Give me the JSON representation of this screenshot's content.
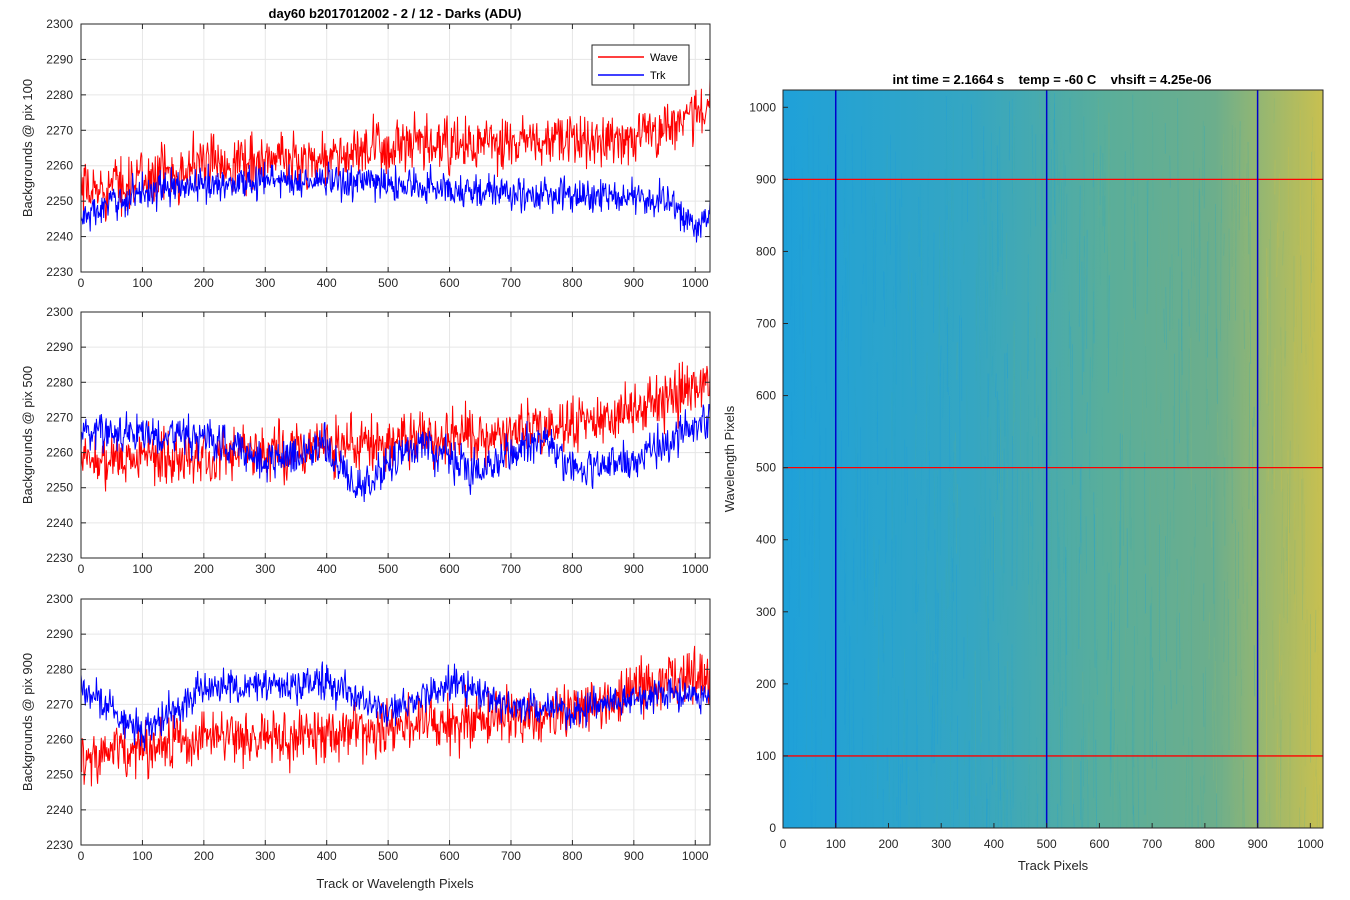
{
  "chart_data": [
    {
      "type": "line",
      "title": "day60 b2017012002 - 2 / 12 - Darks (ADU)",
      "xlabel": "",
      "ylabel": "Backgrounds @ pix 100",
      "xlim": [
        0,
        1024
      ],
      "ylim": [
        2230,
        2300
      ],
      "xticks": [
        0,
        100,
        200,
        300,
        400,
        500,
        600,
        700,
        800,
        900,
        1000
      ],
      "yticks": [
        2230,
        2240,
        2250,
        2260,
        2270,
        2280,
        2290,
        2300
      ],
      "grid": true,
      "legend": "top-right",
      "series": [
        {
          "name": "Wave",
          "color": "#ff0000",
          "trend": [
            [
              0,
              2252
            ],
            [
              200,
              2261
            ],
            [
              400,
              2262
            ],
            [
              500,
              2265
            ],
            [
              700,
              2266
            ],
            [
              900,
              2268
            ],
            [
              1024,
              2276
            ]
          ],
          "noise": 8
        },
        {
          "name": "Trk",
          "color": "#0000ff",
          "trend": [
            [
              0,
              2245
            ],
            [
              100,
              2253
            ],
            [
              300,
              2256
            ],
            [
              500,
              2255
            ],
            [
              700,
              2252
            ],
            [
              900,
              2251
            ],
            [
              960,
              2250
            ],
            [
              1000,
              2242
            ],
            [
              1024,
              2246
            ]
          ],
          "noise": 5
        }
      ]
    },
    {
      "type": "line",
      "title": "",
      "xlabel": "",
      "ylabel": "Backgrounds @ pix 500",
      "xlim": [
        0,
        1024
      ],
      "ylim": [
        2230,
        2300
      ],
      "xticks": [
        0,
        100,
        200,
        300,
        400,
        500,
        600,
        700,
        800,
        900,
        1000
      ],
      "yticks": [
        2230,
        2240,
        2250,
        2260,
        2270,
        2280,
        2290,
        2300
      ],
      "grid": true,
      "series": [
        {
          "name": "Wave",
          "color": "#ff0000",
          "trend": [
            [
              0,
              2258
            ],
            [
              200,
              2259
            ],
            [
              400,
              2262
            ],
            [
              600,
              2265
            ],
            [
              800,
              2268
            ],
            [
              900,
              2272
            ],
            [
              1024,
              2280
            ]
          ],
          "noise": 8
        },
        {
          "name": "Trk",
          "color": "#0000ff",
          "trend": [
            [
              0,
              2266
            ],
            [
              100,
              2266
            ],
            [
              200,
              2264
            ],
            [
              300,
              2258
            ],
            [
              400,
              2262
            ],
            [
              450,
              2250
            ],
            [
              550,
              2262
            ],
            [
              650,
              2255
            ],
            [
              750,
              2265
            ],
            [
              800,
              2255
            ],
            [
              900,
              2258
            ],
            [
              1024,
              2270
            ]
          ],
          "noise": 6
        }
      ]
    },
    {
      "type": "line",
      "title": "",
      "xlabel": "Track or Wavelength Pixels",
      "ylabel": "Backgrounds @ pix 900",
      "xlim": [
        0,
        1024
      ],
      "ylim": [
        2230,
        2300
      ],
      "xticks": [
        0,
        100,
        200,
        300,
        400,
        500,
        600,
        700,
        800,
        900,
        1000
      ],
      "yticks": [
        2230,
        2240,
        2250,
        2260,
        2270,
        2280,
        2290,
        2300
      ],
      "grid": true,
      "series": [
        {
          "name": "Wave",
          "color": "#ff0000",
          "trend": [
            [
              0,
              2255
            ],
            [
              200,
              2260
            ],
            [
              400,
              2262
            ],
            [
              600,
              2265
            ],
            [
              800,
              2268
            ],
            [
              900,
              2273
            ],
            [
              1024,
              2280
            ]
          ],
          "noise": 8
        },
        {
          "name": "Trk",
          "color": "#0000ff",
          "trend": [
            [
              0,
              2275
            ],
            [
              100,
              2262
            ],
            [
              200,
              2275
            ],
            [
              300,
              2275
            ],
            [
              400,
              2276
            ],
            [
              500,
              2268
            ],
            [
              600,
              2276
            ],
            [
              700,
              2270
            ],
            [
              800,
              2268
            ],
            [
              900,
              2273
            ],
            [
              1024,
              2272
            ]
          ],
          "noise": 5
        }
      ]
    },
    {
      "type": "heatmap",
      "title": "int time = 2.1664 s    temp = -60 C    vhsift = 4.25e-06",
      "xlabel": "Track Pixels",
      "ylabel": "Wavelength Pixels",
      "xlim": [
        0,
        1024
      ],
      "ylim": [
        0,
        1024
      ],
      "xticks": [
        0,
        100,
        200,
        300,
        400,
        500,
        600,
        700,
        800,
        900,
        1000
      ],
      "yticks": [
        0,
        100,
        200,
        300,
        400,
        500,
        600,
        700,
        800,
        900,
        1000
      ],
      "grid": false,
      "colormap": "parula",
      "low_color": "#1fa1d9",
      "high_color": "#c8c050",
      "vertical_markers": {
        "values": [
          100,
          500,
          900
        ],
        "color": "#0000cc"
      },
      "horizontal_markers": {
        "values": [
          100,
          500,
          900
        ],
        "color": "#ff0000"
      }
    }
  ]
}
